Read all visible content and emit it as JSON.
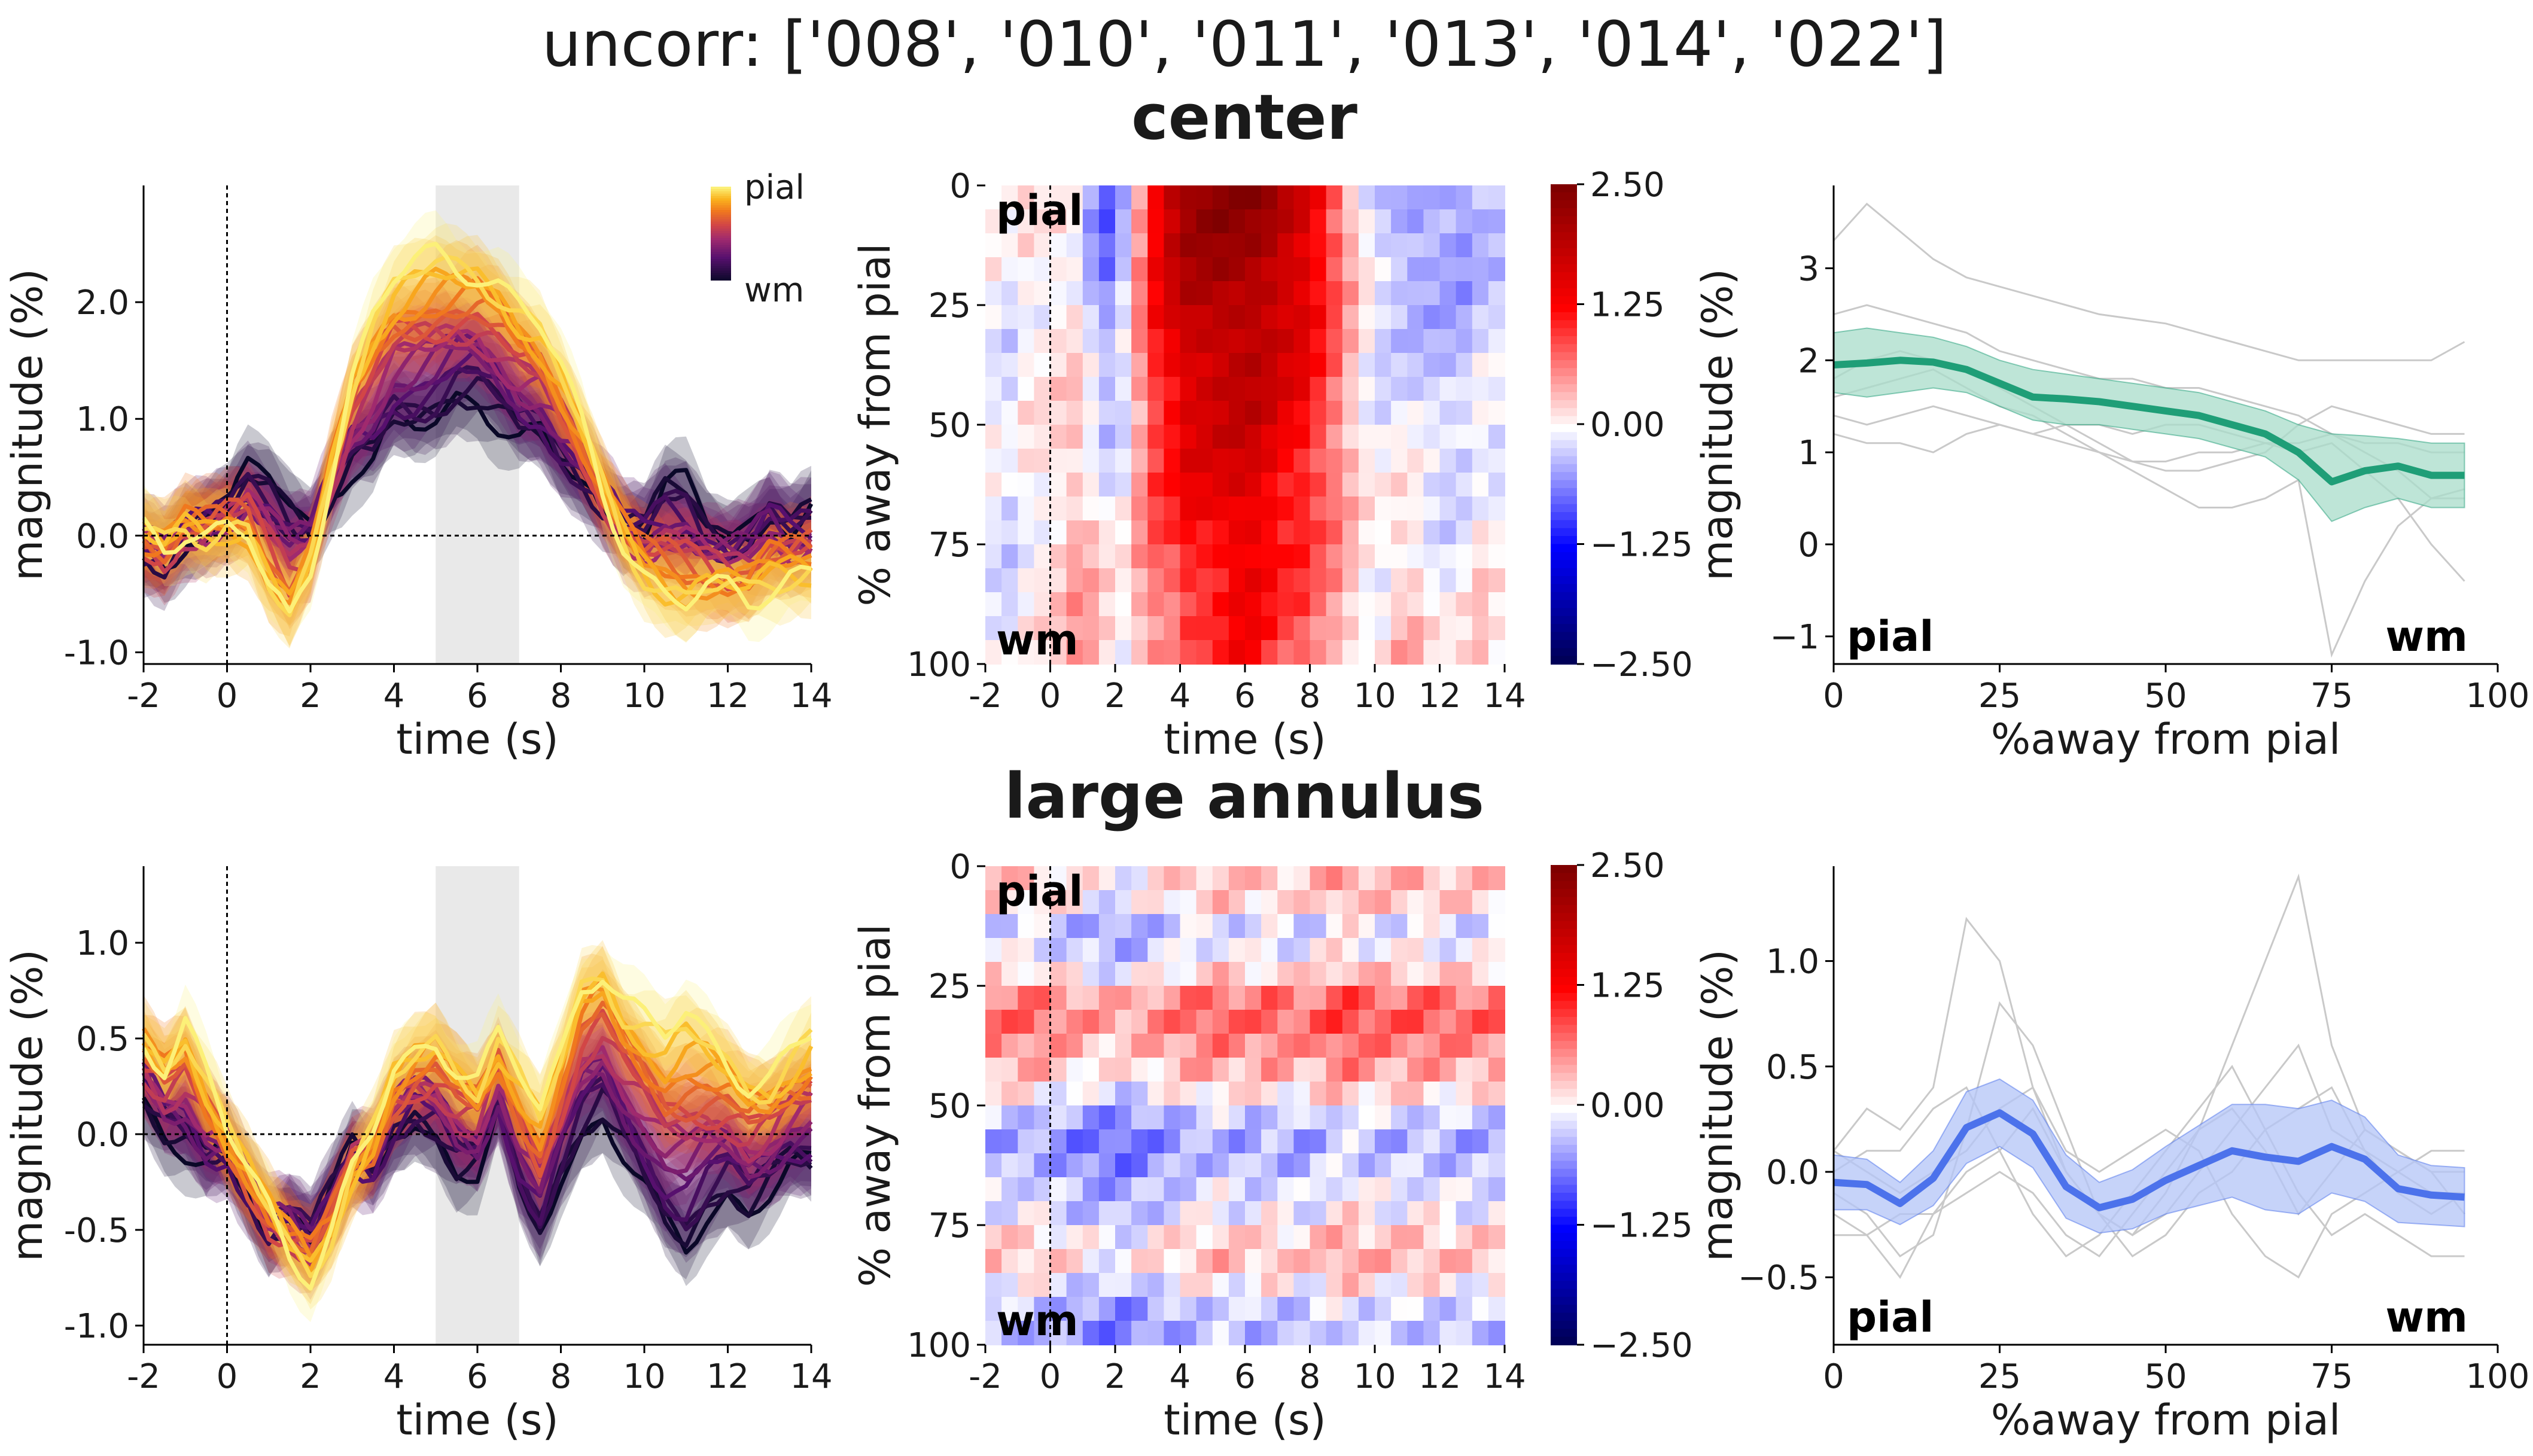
{
  "figure": {
    "title": "uncorr: ['008', '010', '011', '013', '014', '022']",
    "rows": [
      {
        "title": "center",
        "title_color": "#1f9e77",
        "line_color": "#1f9e77",
        "band_color": "#a8dcc9"
      },
      {
        "title": "large annulus",
        "title_color": "#4c78ea",
        "line_color": "#4c72eb",
        "band_color": "#b3c4f7"
      }
    ],
    "colors": {
      "gray_traces": "#c9c9c9",
      "shade": "#e9e9e9",
      "bg": "#ffffff"
    },
    "timecourse_colormap": "inferno",
    "heatmap_colormap": "seismic"
  },
  "chart_data": [
    {
      "type": "line",
      "panel": "center-timecourse",
      "xlabel": "time (s)",
      "ylabel": "magnitude (%)",
      "xlim": [
        -2,
        14
      ],
      "ylim": [
        -1.1,
        3.0
      ],
      "xticks": [
        "-2",
        "0",
        "2",
        "4",
        "6",
        "8",
        "10",
        "12",
        "14"
      ],
      "yticks": [
        "-1.0",
        "0.0",
        "1.0",
        "2.0"
      ],
      "ytick_values": [
        -1,
        0,
        1,
        2
      ],
      "shaded_window": [
        5,
        7
      ],
      "dotted_vline": 0,
      "dotted_hline": 0,
      "n_depths": 21,
      "colorbar_labels": {
        "top": "pial",
        "bottom": "wm"
      },
      "profile": {
        "t": [
          -2,
          -1.5,
          -1,
          -0.5,
          0,
          0.5,
          1,
          1.5,
          2,
          2.5,
          3,
          3.5,
          4,
          4.5,
          5,
          5.5,
          6,
          6.5,
          7,
          7.5,
          8,
          8.5,
          9,
          9.5,
          10,
          10.5,
          11,
          11.5,
          12,
          12.5,
          13,
          13.5,
          14
        ],
        "pial": [
          0.0,
          -0.1,
          0.1,
          0.05,
          0.1,
          0.0,
          -0.5,
          -0.8,
          -0.3,
          0.6,
          1.4,
          1.9,
          2.2,
          2.3,
          2.35,
          2.3,
          2.3,
          2.2,
          2.0,
          1.8,
          1.4,
          0.9,
          0.4,
          0.0,
          -0.3,
          -0.5,
          -0.6,
          -0.5,
          -0.5,
          -0.55,
          -0.4,
          -0.3,
          -0.3
        ],
        "wm": [
          -0.1,
          -0.2,
          0.0,
          0.1,
          0.2,
          0.5,
          0.5,
          0.3,
          0.1,
          0.4,
          0.6,
          0.6,
          0.9,
          0.9,
          1.0,
          1.2,
          1.2,
          1.0,
          0.8,
          0.8,
          0.6,
          0.5,
          0.3,
          0.1,
          0.1,
          0.4,
          0.4,
          0.1,
          0.0,
          0.1,
          0.3,
          0.1,
          0.2
        ]
      }
    },
    {
      "type": "heatmap",
      "panel": "center-heatmap",
      "xlabel": "time (s)",
      "ylabel": "% away from pial",
      "xlim": [
        -2,
        14
      ],
      "ylim": [
        100,
        0
      ],
      "xticks": [
        "-2",
        "0",
        "2",
        "4",
        "6",
        "8",
        "10",
        "12",
        "14"
      ],
      "yticks": [
        "0",
        "25",
        "50",
        "75",
        "100"
      ],
      "ytick_values": [
        0,
        25,
        50,
        75,
        100
      ],
      "colorbar_ticks": [
        "2.50",
        "1.25",
        "0.00",
        "−1.25",
        "−2.50"
      ],
      "colorbar_values": [
        2.5,
        1.25,
        0,
        -1.25,
        -2.5
      ],
      "vmin": -2.5,
      "vmax": 2.5,
      "annotations": {
        "top": "pial",
        "bottom": "wm"
      },
      "dotted_vline": 0,
      "x_cols": [
        -2,
        -1.5,
        -1,
        -0.5,
        0,
        0.5,
        1,
        1.5,
        2,
        2.5,
        3,
        3.5,
        4,
        4.5,
        5,
        5.5,
        6,
        6.5,
        7,
        7.5,
        8,
        8.5,
        9,
        9.5,
        10,
        10.5,
        11,
        11.5,
        12,
        12.5,
        13,
        13.5
      ],
      "depth_rows": [
        0,
        5,
        10,
        15,
        20,
        25,
        30,
        35,
        40,
        45,
        50,
        55,
        60,
        65,
        70,
        75,
        80,
        85,
        90,
        95
      ],
      "pial_profile": [
        0.0,
        -0.1,
        0.1,
        0.05,
        0.1,
        0.0,
        -0.5,
        -0.8,
        -0.3,
        0.6,
        1.4,
        1.9,
        2.2,
        2.3,
        2.35,
        2.3,
        2.3,
        2.2,
        2.0,
        1.8,
        1.4,
        0.9,
        0.4,
        0.0,
        -0.3,
        -0.5,
        -0.6,
        -0.5,
        -0.5,
        -0.55,
        -0.4,
        -0.3
      ],
      "wm_profile": [
        -0.1,
        -0.2,
        0.0,
        0.1,
        0.2,
        0.5,
        0.5,
        0.3,
        0.1,
        0.4,
        0.6,
        0.6,
        0.9,
        0.9,
        1.0,
        1.2,
        1.2,
        1.0,
        0.8,
        0.8,
        0.6,
        0.5,
        0.3,
        0.1,
        0.1,
        0.4,
        0.4,
        0.1,
        0.0,
        0.1,
        0.3,
        0.1
      ]
    },
    {
      "type": "line",
      "panel": "center-depth-profile",
      "xlabel": "%away from pial",
      "ylabel": "magnitude (%)",
      "xlim": [
        0,
        100
      ],
      "ylim": [
        -1.3,
        3.9
      ],
      "xticks": [
        "0",
        "25",
        "50",
        "75",
        "100"
      ],
      "xtick_values": [
        0,
        25,
        50,
        75,
        100
      ],
      "yticks": [
        "−1",
        "0",
        "1",
        "2",
        "3"
      ],
      "ytick_values": [
        -1,
        0,
        1,
        2,
        3
      ],
      "annotations": {
        "left": "pial",
        "right": "wm"
      },
      "x": [
        0,
        5,
        10,
        15,
        20,
        25,
        30,
        35,
        40,
        45,
        50,
        55,
        60,
        65,
        70,
        75,
        80,
        85,
        90,
        95
      ],
      "mean": [
        1.95,
        1.97,
        2.0,
        1.98,
        1.9,
        1.75,
        1.6,
        1.58,
        1.55,
        1.5,
        1.45,
        1.4,
        1.3,
        1.2,
        1.0,
        0.68,
        0.8,
        0.85,
        0.75,
        0.75
      ],
      "upper": [
        2.3,
        2.35,
        2.3,
        2.25,
        2.15,
        2.0,
        1.9,
        1.85,
        1.8,
        1.75,
        1.7,
        1.65,
        1.55,
        1.45,
        1.3,
        1.2,
        1.18,
        1.15,
        1.1,
        1.1
      ],
      "lower": [
        1.65,
        1.6,
        1.65,
        1.7,
        1.65,
        1.5,
        1.35,
        1.3,
        1.3,
        1.25,
        1.2,
        1.15,
        1.05,
        0.95,
        0.7,
        0.25,
        0.4,
        0.5,
        0.4,
        0.4
      ],
      "subjects": [
        [
          3.3,
          3.7,
          3.4,
          3.1,
          2.9,
          2.8,
          2.7,
          2.6,
          2.5,
          2.45,
          2.4,
          2.3,
          2.2,
          2.1,
          2.0,
          2.0,
          2.0,
          2.0,
          2.0,
          2.2
        ],
        [
          2.5,
          2.6,
          2.5,
          2.4,
          2.3,
          2.1,
          2.0,
          1.9,
          1.8,
          1.8,
          1.7,
          1.7,
          1.6,
          1.5,
          1.4,
          1.2,
          1.1,
          1.1,
          1.0,
          1.0
        ],
        [
          1.6,
          1.7,
          1.8,
          1.9,
          1.7,
          1.5,
          1.4,
          1.2,
          1.0,
          0.8,
          0.6,
          0.4,
          0.4,
          0.5,
          0.7,
          -1.2,
          -0.4,
          0.2,
          0.5,
          0.5
        ],
        [
          1.4,
          1.3,
          1.4,
          1.5,
          1.4,
          1.3,
          1.2,
          1.3,
          1.3,
          1.2,
          1.3,
          1.3,
          1.2,
          1.1,
          1.0,
          1.1,
          0.8,
          0.5,
          0.0,
          -0.4
        ],
        [
          1.2,
          1.1,
          1.1,
          1.0,
          1.2,
          1.3,
          1.2,
          1.1,
          1.0,
          0.9,
          0.9,
          1.0,
          1.0,
          1.1,
          1.1,
          1.2,
          1.0,
          0.8,
          0.5,
          0.6
        ],
        [
          1.8,
          2.0,
          2.1,
          2.0,
          1.9,
          1.7,
          1.5,
          1.3,
          1.1,
          0.9,
          0.8,
          0.8,
          0.9,
          1.0,
          1.3,
          1.5,
          1.4,
          1.3,
          1.2,
          1.2
        ]
      ]
    },
    {
      "type": "line",
      "panel": "annulus-timecourse",
      "xlabel": "time (s)",
      "ylabel": "magnitude (%)",
      "xlim": [
        -2,
        14
      ],
      "ylim": [
        -1.1,
        1.4
      ],
      "xticks": [
        "-2",
        "0",
        "2",
        "4",
        "6",
        "8",
        "10",
        "12",
        "14"
      ],
      "yticks": [
        "-1.0",
        "-0.5",
        "0.0",
        "0.5",
        "1.0"
      ],
      "ytick_values": [
        -1,
        -0.5,
        0,
        0.5,
        1
      ],
      "shaded_window": [
        5,
        7
      ],
      "dotted_vline": 0,
      "dotted_hline": 0,
      "n_depths": 21,
      "profile": {
        "t": [
          -2,
          -1.5,
          -1,
          -0.5,
          0,
          0.5,
          1,
          1.5,
          2,
          2.5,
          3,
          3.5,
          4,
          4.5,
          5,
          5.5,
          6,
          6.5,
          7,
          7.5,
          8,
          8.5,
          9,
          9.5,
          10,
          10.5,
          11,
          11.5,
          12,
          12.5,
          13,
          13.5,
          14
        ],
        "pial": [
          0.5,
          0.4,
          0.6,
          0.3,
          0.0,
          -0.2,
          -0.4,
          -0.6,
          -0.7,
          -0.5,
          -0.2,
          0.0,
          0.3,
          0.4,
          0.5,
          0.4,
          0.3,
          0.5,
          0.3,
          0.1,
          0.4,
          0.8,
          0.9,
          0.7,
          0.6,
          0.5,
          0.6,
          0.5,
          0.4,
          0.3,
          0.3,
          0.4,
          0.5
        ],
        "wm": [
          0.2,
          0.0,
          -0.1,
          -0.2,
          -0.1,
          -0.3,
          -0.5,
          -0.4,
          -0.5,
          -0.3,
          -0.1,
          -0.2,
          0.0,
          0.1,
          0.0,
          -0.2,
          -0.2,
          0.1,
          -0.3,
          -0.5,
          -0.2,
          0.0,
          0.1,
          -0.1,
          -0.3,
          -0.5,
          -0.6,
          -0.4,
          -0.3,
          -0.4,
          -0.3,
          -0.2,
          -0.2
        ]
      }
    },
    {
      "type": "heatmap",
      "panel": "annulus-heatmap",
      "xlabel": "time (s)",
      "ylabel": "% away from pial",
      "xlim": [
        -2,
        14
      ],
      "ylim": [
        100,
        0
      ],
      "xticks": [
        "-2",
        "0",
        "2",
        "4",
        "6",
        "8",
        "10",
        "12",
        "14"
      ],
      "yticks": [
        "0",
        "25",
        "50",
        "75",
        "100"
      ],
      "ytick_values": [
        0,
        25,
        50,
        75,
        100
      ],
      "colorbar_ticks": [
        "2.50",
        "1.25",
        "0.00",
        "−1.25",
        "−2.50"
      ],
      "colorbar_values": [
        2.5,
        1.25,
        0,
        -1.25,
        -2.5
      ],
      "vmin": -2.5,
      "vmax": 2.5,
      "annotations": {
        "top": "pial",
        "bottom": "wm"
      },
      "dotted_vline": 0,
      "x_cols": [
        -2,
        -1.5,
        -1,
        -0.5,
        0,
        0.5,
        1,
        1.5,
        2,
        2.5,
        3,
        3.5,
        4,
        4.5,
        5,
        5.5,
        6,
        6.5,
        7,
        7.5,
        8,
        8.5,
        9,
        9.5,
        10,
        10.5,
        11,
        11.5,
        12,
        12.5,
        13,
        13.5
      ],
      "depth_rows": [
        0,
        5,
        10,
        15,
        20,
        25,
        30,
        35,
        40,
        45,
        50,
        55,
        60,
        65,
        70,
        75,
        80,
        85,
        90,
        95
      ],
      "row_profile": [
        0.2,
        0.1,
        -0.3,
        -0.2,
        0.1,
        0.6,
        0.7,
        0.5,
        0.3,
        0.0,
        -0.4,
        -0.6,
        -0.5,
        -0.3,
        -0.2,
        0.1,
        0.2,
        -0.1,
        -0.4,
        -0.5
      ],
      "col_profile": [
        0.3,
        0.2,
        0.4,
        0.2,
        0.0,
        -0.2,
        -0.4,
        -0.5,
        -0.6,
        -0.4,
        -0.1,
        0.0,
        0.3,
        0.4,
        0.5,
        0.3,
        0.2,
        0.5,
        0.3,
        0.1,
        0.4,
        0.8,
        0.9,
        0.6,
        0.5,
        0.4,
        0.6,
        0.5,
        0.4,
        0.3,
        0.3,
        0.4
      ]
    },
    {
      "type": "line",
      "panel": "annulus-depth-profile",
      "xlabel": "%away from pial",
      "ylabel": "magnitude (%)",
      "xlim": [
        0,
        100
      ],
      "ylim": [
        -0.82,
        1.45
      ],
      "xticks": [
        "0",
        "25",
        "50",
        "75",
        "100"
      ],
      "xtick_values": [
        0,
        25,
        50,
        75,
        100
      ],
      "yticks": [
        "−0.5",
        "0.0",
        "0.5",
        "1.0"
      ],
      "ytick_values": [
        -0.5,
        0,
        0.5,
        1.0
      ],
      "annotations": {
        "left": "pial",
        "right": "wm"
      },
      "x": [
        0,
        5,
        10,
        15,
        20,
        25,
        30,
        35,
        40,
        45,
        50,
        55,
        60,
        65,
        70,
        75,
        80,
        85,
        90,
        95
      ],
      "mean": [
        -0.05,
        -0.06,
        -0.15,
        -0.03,
        0.21,
        0.28,
        0.18,
        -0.07,
        -0.17,
        -0.13,
        -0.04,
        0.03,
        0.1,
        0.07,
        0.05,
        0.12,
        0.06,
        -0.08,
        -0.11,
        -0.12
      ],
      "upper": [
        0.08,
        0.06,
        -0.05,
        0.1,
        0.38,
        0.44,
        0.34,
        0.08,
        -0.05,
        0.01,
        0.12,
        0.22,
        0.32,
        0.32,
        0.3,
        0.34,
        0.26,
        0.08,
        0.03,
        0.02
      ],
      "lower": [
        -0.18,
        -0.18,
        -0.25,
        -0.16,
        0.04,
        0.12,
        0.02,
        -0.22,
        -0.29,
        -0.27,
        -0.2,
        -0.16,
        -0.12,
        -0.18,
        -0.2,
        -0.1,
        -0.14,
        -0.24,
        -0.25,
        -0.26
      ],
      "subjects": [
        [
          0.1,
          0.3,
          0.2,
          0.4,
          1.2,
          1.0,
          0.4,
          0.0,
          -0.2,
          -0.3,
          -0.1,
          0.2,
          0.6,
          1.0,
          1.4,
          0.6,
          0.2,
          0.1,
          0.0,
          0.0
        ],
        [
          -0.1,
          -0.2,
          -0.4,
          -0.3,
          0.2,
          0.8,
          0.6,
          0.2,
          -0.2,
          -0.3,
          -0.2,
          0.0,
          0.2,
          0.4,
          0.6,
          0.2,
          0.1,
          0.0,
          -0.1,
          -0.1
        ],
        [
          0.0,
          0.1,
          0.1,
          0.3,
          0.4,
          0.1,
          -0.2,
          -0.4,
          -0.3,
          -0.1,
          0.1,
          0.3,
          0.5,
          0.2,
          -0.1,
          -0.3,
          -0.2,
          -0.3,
          -0.4,
          -0.4
        ],
        [
          -0.2,
          -0.3,
          -0.5,
          -0.2,
          0.0,
          0.1,
          0.3,
          0.0,
          -0.2,
          -0.4,
          -0.3,
          -0.1,
          0.0,
          0.2,
          0.3,
          0.4,
          0.1,
          -0.1,
          -0.2,
          -0.1
        ],
        [
          0.1,
          0.0,
          -0.1,
          0.0,
          0.1,
          0.3,
          0.4,
          0.1,
          0.0,
          0.1,
          0.2,
          0.1,
          -0.2,
          -0.4,
          -0.5,
          -0.2,
          -0.1,
          0.0,
          0.1,
          0.1
        ],
        [
          -0.3,
          -0.3,
          -0.2,
          -0.2,
          -0.1,
          0.0,
          -0.1,
          -0.3,
          -0.4,
          -0.2,
          0.0,
          0.2,
          0.3,
          0.1,
          -0.2,
          0.0,
          0.2,
          0.1,
          0.0,
          -0.2
        ]
      ]
    }
  ]
}
